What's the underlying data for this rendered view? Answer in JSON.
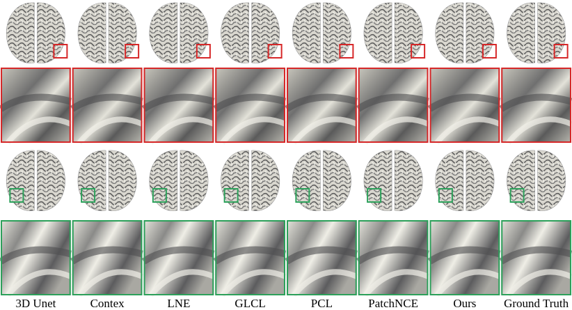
{
  "labels": [
    "3D Unet",
    "Contex",
    "LNE",
    "GLCL",
    "PCL",
    "PatchNCE",
    "Ours",
    "Ground Truth"
  ]
}
